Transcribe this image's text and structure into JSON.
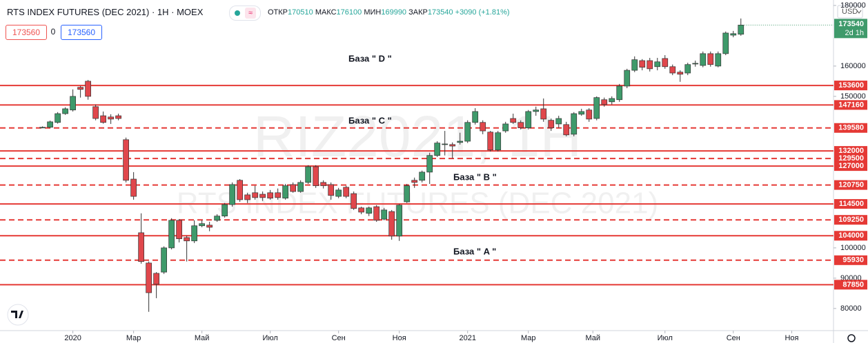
{
  "header": {
    "symbol": "RTS INDEX FUTURES (DEC 2021) · 1H · MOEX",
    "open_label": "ОТКР",
    "open": 170510,
    "high_label": "МАКС",
    "high": 176100,
    "low_label": "МИН",
    "low": 169990,
    "close_label": "ЗАКР",
    "close": 173540,
    "change": "+3090 (+1.81%)",
    "sell": 173560,
    "spread": 0,
    "buy": 173560,
    "currency": "USD",
    "watermark_symbol": "RIZ2021, 1H",
    "watermark_name": "RTS INDEX FUTURES (DEC 2021)",
    "countdown": "2d 1h"
  },
  "chart_data": {
    "type": "candlestick",
    "up_color": "#3f9a6b",
    "down_color": "#e0474c",
    "open": [
      139800,
      139800,
      141400,
      144300,
      145500,
      153000,
      155000,
      146600,
      143600,
      143200,
      143600,
      135700,
      122700,
      105000,
      95000,
      91600,
      92000,
      100000,
      109100,
      103400,
      102300,
      107300,
      107500,
      109100,
      110500,
      114300,
      122300,
      117500,
      118200,
      117700,
      118200,
      118200,
      116400,
      120900,
      118600,
      121600,
      126800,
      121600,
      120900,
      117000,
      120000,
      117900,
      113200,
      111400,
      113600,
      109500,
      112000,
      103900,
      115200,
      122300,
      122300,
      125000,
      130500,
      134100,
      134100,
      134800,
      135200,
      141400,
      141400,
      138200,
      132300,
      138600,
      142700,
      141400,
      139600,
      145000,
      145900,
      142100,
      140900,
      140700,
      137500,
      144100,
      145500,
      142700,
      148900,
      148200,
      148900,
      153400,
      158600,
      161800,
      161800,
      159800,
      162500,
      159800,
      158000,
      157700,
      160700,
      160200,
      164100,
      160000,
      164100,
      170200,
      170500
    ],
    "high": [
      140100,
      142000,
      144800,
      146400,
      152300,
      153400,
      155400,
      147300,
      145000,
      144100,
      144300,
      136400,
      125000,
      111400,
      95500,
      92000,
      100500,
      109800,
      109500,
      104000,
      109100,
      109100,
      108600,
      111100,
      114800,
      121600,
      122700,
      118200,
      120500,
      118600,
      119100,
      119600,
      121100,
      121600,
      122300,
      127300,
      127300,
      122300,
      121600,
      119800,
      120500,
      118600,
      113600,
      113600,
      114100,
      113200,
      112500,
      114500,
      121100,
      123200,
      125500,
      131400,
      135200,
      138600,
      134800,
      138000,
      142100,
      146100,
      142100,
      138600,
      138600,
      141600,
      144300,
      142100,
      145500,
      146600,
      149300,
      142700,
      143600,
      141600,
      144800,
      145900,
      146100,
      150000,
      149600,
      150000,
      154100,
      159100,
      163200,
      162300,
      162700,
      162700,
      163600,
      160500,
      158600,
      161100,
      161800,
      164800,
      164800,
      164800,
      171400,
      171600,
      175700
    ],
    "low": [
      139500,
      139500,
      141000,
      143900,
      145000,
      149600,
      148900,
      142100,
      141000,
      140900,
      142100,
      121600,
      115900,
      94800,
      78900,
      83400,
      91400,
      99500,
      101800,
      95500,
      101600,
      106800,
      105500,
      108600,
      110000,
      113600,
      115200,
      114800,
      115900,
      115500,
      115900,
      115900,
      115900,
      118200,
      118200,
      121100,
      119800,
      119600,
      115900,
      116400,
      116400,
      112500,
      111100,
      110500,
      108600,
      109100,
      102700,
      102300,
      114800,
      119800,
      121600,
      121100,
      130000,
      130500,
      129500,
      134100,
      134600,
      140700,
      137500,
      131800,
      131800,
      138000,
      140900,
      139100,
      139100,
      143600,
      141600,
      138600,
      139600,
      136800,
      136800,
      143600,
      141600,
      142100,
      146600,
      147300,
      148200,
      152700,
      158000,
      158600,
      158200,
      158600,
      159100,
      157000,
      154800,
      157000,
      159800,
      159600,
      159800,
      159600,
      163600,
      169500,
      170000
    ],
    "close": [
      139800,
      141600,
      144300,
      145900,
      150000,
      152300,
      150000,
      142700,
      141400,
      142500,
      142700,
      122300,
      117000,
      95500,
      85200,
      88000,
      100000,
      109100,
      103000,
      102300,
      107300,
      108000,
      106800,
      110500,
      114300,
      120900,
      115900,
      115900,
      116600,
      116600,
      116400,
      116600,
      120500,
      118600,
      121600,
      126800,
      120500,
      120500,
      117300,
      119100,
      117000,
      113000,
      111800,
      113200,
      109100,
      112500,
      103900,
      114100,
      120500,
      121600,
      125000,
      130500,
      134600,
      134300,
      133600,
      135200,
      141400,
      145000,
      138600,
      132300,
      138000,
      140900,
      141400,
      139600,
      145000,
      145500,
      142500,
      139600,
      142700,
      137300,
      144300,
      145000,
      142500,
      149600,
      147300,
      149300,
      153400,
      158600,
      162100,
      159600,
      159100,
      161400,
      159800,
      157700,
      157300,
      160500,
      160900,
      164100,
      160500,
      164100,
      170900,
      170700,
      173540
    ],
    "xlim": [
      -5.6,
      104.2
    ],
    "xticks": [
      {
        "value": 4,
        "label": "2020"
      },
      {
        "value": 12,
        "label": "Мар"
      },
      {
        "value": 21,
        "label": "Май"
      },
      {
        "value": 30,
        "label": "Июл"
      },
      {
        "value": 39,
        "label": "Сен"
      },
      {
        "value": 47,
        "label": "Ноя"
      },
      {
        "value": 56,
        "label": "2021"
      },
      {
        "value": 64,
        "label": "Мар"
      },
      {
        "value": 72.5,
        "label": "Май"
      },
      {
        "value": 82,
        "label": "Июл"
      },
      {
        "value": 91,
        "label": "Сен"
      },
      {
        "value": 98.7,
        "label": "Ноя"
      }
    ],
    "ylim": [
      72700,
      181800
    ],
    "yticks": [
      80000,
      90000,
      100000,
      150000,
      160000,
      180000
    ],
    "grid": false,
    "level_color": "#e53935",
    "levels": [
      {
        "value": 153600,
        "style": "solid"
      },
      {
        "value": 147160,
        "style": "solid"
      },
      {
        "value": 139580,
        "style": "dashed"
      },
      {
        "value": 132000,
        "style": "solid"
      },
      {
        "value": 129500,
        "style": "dashed"
      },
      {
        "value": 127000,
        "style": "solid"
      },
      {
        "value": 120750,
        "style": "dashed"
      },
      {
        "value": 114500,
        "style": "solid"
      },
      {
        "value": 109250,
        "style": "dashed"
      },
      {
        "value": 104000,
        "style": "solid"
      },
      {
        "value": 95930,
        "style": "dashed"
      },
      {
        "value": 87850,
        "style": "solid"
      }
    ],
    "annotations": [
      "База  \" D \"",
      "База  \" C \"",
      "База  \" B \"",
      "База  \" A \""
    ]
  }
}
